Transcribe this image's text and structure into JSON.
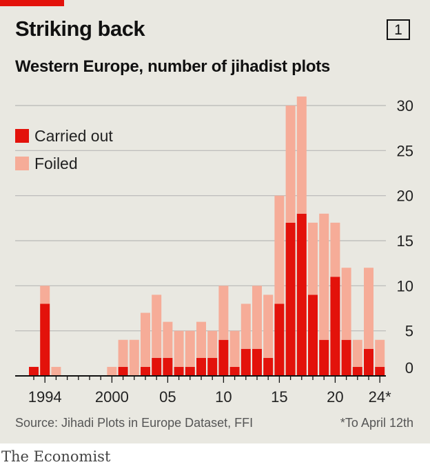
{
  "header": {
    "title": "Striking back",
    "chart_number": "1",
    "subtitle": "Western Europe, number of jihadist plots"
  },
  "footer": {
    "source": "Source: Jihadi Plots in Europe Dataset, FFI",
    "footnote": "*To April 12th",
    "brand": "The Economist"
  },
  "colors": {
    "carried_out": "#e3120b",
    "foiled": "#f6ac98",
    "grid": "#b7b7b7",
    "axis": "#111111",
    "background": "#e9e8e1"
  },
  "chart_data": {
    "type": "bar",
    "stacked": true,
    "title": "Western Europe, number of jihadist plots",
    "xlabel": "",
    "ylabel": "",
    "ylim": [
      0,
      30
    ],
    "yticks": [
      0,
      5,
      10,
      15,
      20,
      25,
      30
    ],
    "legend_position": "top-left",
    "categories": [
      "1993",
      "1994",
      "1995",
      "1996",
      "1997",
      "1998",
      "1999",
      "2000",
      "2001",
      "2002",
      "2003",
      "2004",
      "2005",
      "2006",
      "2007",
      "2008",
      "2009",
      "2010",
      "2011",
      "2012",
      "2013",
      "2014",
      "2015",
      "2016",
      "2017",
      "2018",
      "2019",
      "2020",
      "2021",
      "2022",
      "2023",
      "2024"
    ],
    "xtick_labels": [
      {
        "category": "1994",
        "label": "1994"
      },
      {
        "category": "2000",
        "label": "2000"
      },
      {
        "category": "2005",
        "label": "05"
      },
      {
        "category": "2010",
        "label": "10"
      },
      {
        "category": "2015",
        "label": "15"
      },
      {
        "category": "2020",
        "label": "20"
      },
      {
        "category": "2024",
        "label": "24*"
      }
    ],
    "series": [
      {
        "name": "Carried out",
        "color": "#e3120b",
        "values": [
          1,
          8,
          0,
          0,
          0,
          0,
          0,
          0,
          1,
          0,
          1,
          2,
          2,
          1,
          1,
          2,
          2,
          4,
          1,
          3,
          3,
          2,
          8,
          17,
          18,
          9,
          4,
          11,
          4,
          1,
          3,
          1
        ]
      },
      {
        "name": "Foiled",
        "color": "#f6ac98",
        "values": [
          0,
          2,
          1,
          0,
          0,
          0,
          0,
          1,
          3,
          4,
          6,
          7,
          4,
          4,
          4,
          4,
          3,
          6,
          4,
          5,
          7,
          7,
          12,
          13,
          13,
          8,
          14,
          6,
          8,
          3,
          9,
          3
        ]
      }
    ]
  }
}
